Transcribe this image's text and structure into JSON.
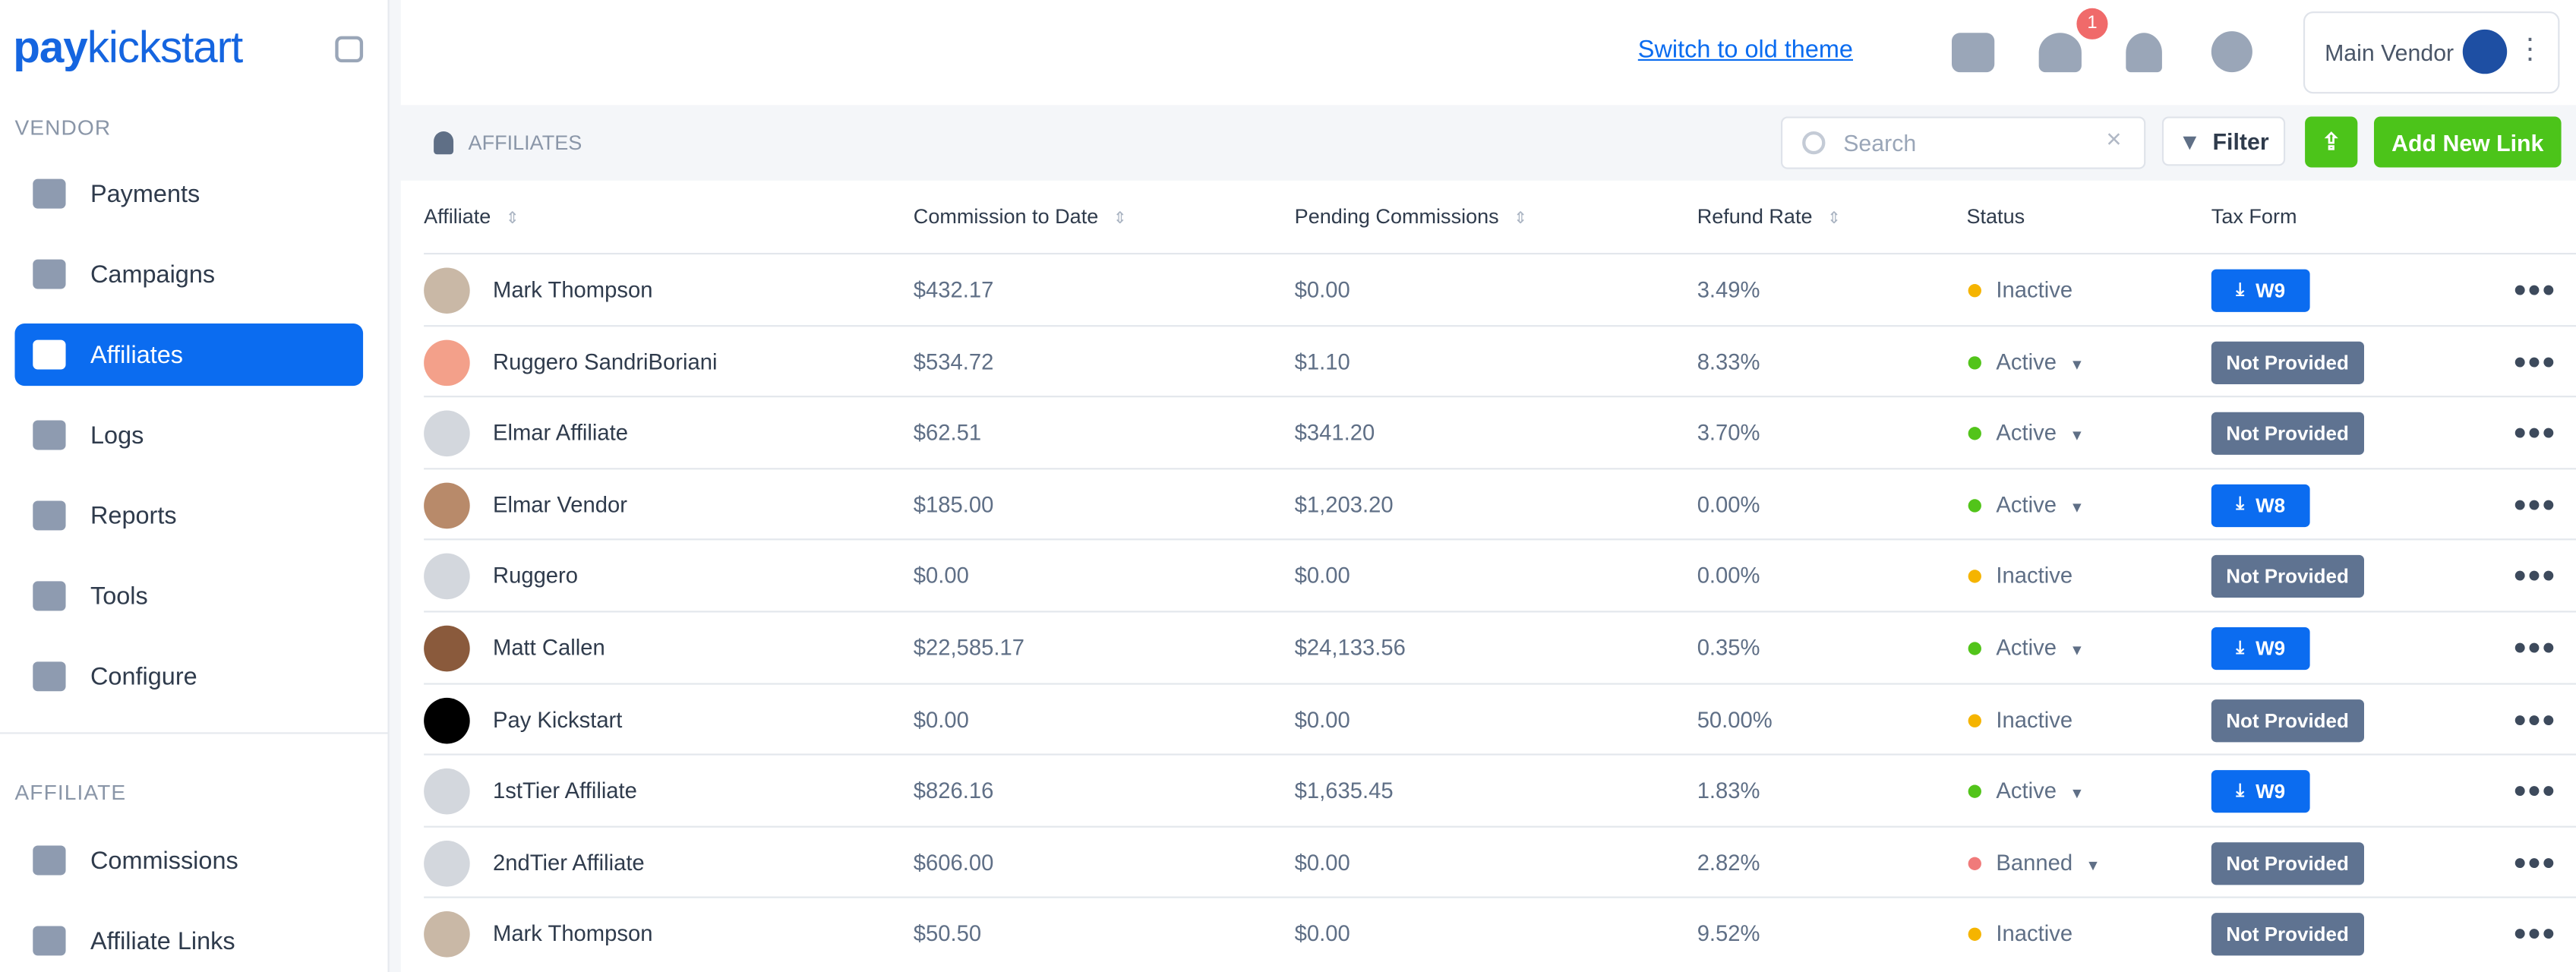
{
  "sidebar": {
    "logo": {
      "bold": "pay",
      "light": "kickstart"
    },
    "vendor_heading": "VENDOR",
    "vendor_items": [
      "Payments",
      "Campaigns",
      "Affiliates",
      "Logs",
      "Reports",
      "Tools",
      "Configure"
    ],
    "affiliate_heading": "AFFILIATE",
    "affiliate_items": [
      "Commissions",
      "Affiliate Links"
    ]
  },
  "topbar": {
    "switch_link": "Switch to old theme",
    "notification_count": 1,
    "account": "Main Vendor"
  },
  "toolbar": {
    "section": "AFFILIATES",
    "search_placeholder": "Search",
    "filter": "Filter",
    "add_button": "Add New Link"
  },
  "table": {
    "columns": [
      "Affiliate",
      "Commission to Date",
      "Pending Commissions",
      "Refund Rate",
      "Status",
      "Tax Form"
    ],
    "rows": [
      {
        "affiliate": "Mark Thompson",
        "commission": "$432.17",
        "pending": "$0.00",
        "refund": "3.49%",
        "status": "Inactive",
        "status_color": "#f5b400",
        "dropdown": false,
        "tax_form": "W9",
        "tax_download": true
      },
      {
        "affiliate": "Ruggero SandriBoriani",
        "commission": "$534.72",
        "pending": "$1.10",
        "refund": "8.33%",
        "status": "Active",
        "status_color": "#52c41a",
        "dropdown": true,
        "tax_form": "Not Provided",
        "tax_download": false
      },
      {
        "affiliate": "Elmar Affiliate",
        "commission": "$62.51",
        "pending": "$341.20",
        "refund": "3.70%",
        "status": "Active",
        "status_color": "#52c41a",
        "dropdown": true,
        "tax_form": "Not Provided",
        "tax_download": false
      },
      {
        "affiliate": "Elmar Vendor",
        "commission": "$185.00",
        "pending": "$1,203.20",
        "refund": "0.00%",
        "status": "Active",
        "status_color": "#52c41a",
        "dropdown": true,
        "tax_form": "W8",
        "tax_download": true
      },
      {
        "affiliate": "Ruggero",
        "commission": "$0.00",
        "pending": "$0.00",
        "refund": "0.00%",
        "status": "Inactive",
        "status_color": "#f5b400",
        "dropdown": false,
        "tax_form": "Not Provided",
        "tax_download": false
      },
      {
        "affiliate": "Matt Callen",
        "commission": "$22,585.17",
        "pending": "$24,133.56",
        "refund": "0.35%",
        "status": "Active",
        "status_color": "#52c41a",
        "dropdown": true,
        "tax_form": "W9",
        "tax_download": true
      },
      {
        "affiliate": "Pay Kickstart",
        "commission": "$0.00",
        "pending": "$0.00",
        "refund": "50.00%",
        "status": "Inactive",
        "status_color": "#f5b400",
        "dropdown": false,
        "tax_form": "Not Provided",
        "tax_download": false
      },
      {
        "affiliate": "1stTier Affiliate",
        "commission": "$826.16",
        "pending": "$1,635.45",
        "refund": "1.83%",
        "status": "Active",
        "status_color": "#52c41a",
        "dropdown": true,
        "tax_form": "W9",
        "tax_download": true
      },
      {
        "affiliate": "2ndTier Affiliate",
        "commission": "$606.00",
        "pending": "$0.00",
        "refund": "2.82%",
        "status": "Banned",
        "status_color": "#f07a7a",
        "dropdown": true,
        "tax_form": "Not Provided",
        "tax_download": false
      },
      {
        "affiliate": "Mark Thompson",
        "commission": "$50.50",
        "pending": "$0.00",
        "refund": "9.52%",
        "status": "Inactive",
        "status_color": "#f5b400",
        "dropdown": false,
        "tax_form": "Not Provided",
        "tax_download": false
      }
    ]
  }
}
